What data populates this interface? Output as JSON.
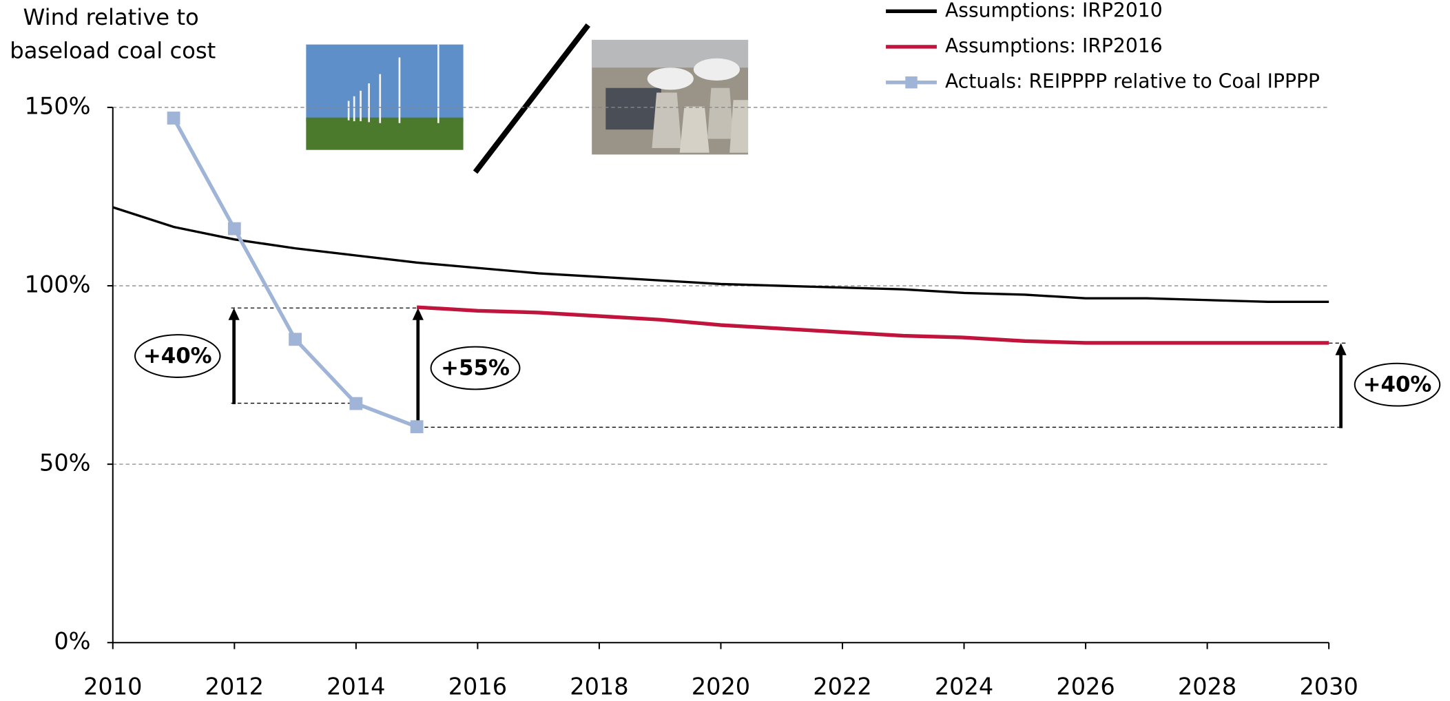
{
  "chart_data": {
    "type": "line",
    "y_label_lines": [
      "Wind relative to",
      "baseload coal cost"
    ],
    "x": [
      2010,
      2011,
      2012,
      2013,
      2014,
      2015,
      2016,
      2017,
      2018,
      2019,
      2020,
      2021,
      2022,
      2023,
      2024,
      2025,
      2026,
      2027,
      2028,
      2029,
      2030
    ],
    "series": [
      {
        "name": "Assumptions: IRP2010",
        "color": "#000000",
        "marker": false,
        "values": [
          122,
          116.5,
          113,
          110.5,
          108.5,
          106.5,
          105,
          103.5,
          102.5,
          101.5,
          100.5,
          100,
          99.5,
          99,
          98,
          97.5,
          96.5,
          96.5,
          96,
          95.5,
          95.5
        ]
      },
      {
        "name": "Assumptions: IRP2016",
        "color": "#c0143c",
        "marker": false,
        "values": [
          null,
          null,
          null,
          null,
          null,
          94,
          93,
          92.5,
          91.5,
          90.5,
          89,
          88,
          87,
          86,
          85.5,
          84.5,
          84,
          84,
          84,
          84,
          84
        ]
      },
      {
        "name": "Actuals: REIPPPP relative to Coal IPPPP",
        "color": "#9fb4d6",
        "marker": true,
        "values": [
          null,
          147,
          116,
          85,
          67,
          60.5,
          null,
          null,
          null,
          null,
          null,
          null,
          null,
          null,
          null,
          null,
          null,
          null,
          null,
          null,
          null
        ]
      }
    ],
    "xlim": [
      2010,
      2030
    ],
    "xticks": [
      2010,
      2012,
      2014,
      2016,
      2018,
      2020,
      2022,
      2024,
      2026,
      2028,
      2030
    ],
    "ylim": [
      0,
      150
    ],
    "yticks": [
      {
        "value": 0,
        "label": "0%"
      },
      {
        "value": 50,
        "label": "50%"
      },
      {
        "value": 100,
        "label": "100%"
      },
      {
        "value": 150,
        "label": "150%"
      }
    ],
    "grid": true,
    "annotations": [
      "+40%",
      "+55%",
      "+40%"
    ]
  }
}
